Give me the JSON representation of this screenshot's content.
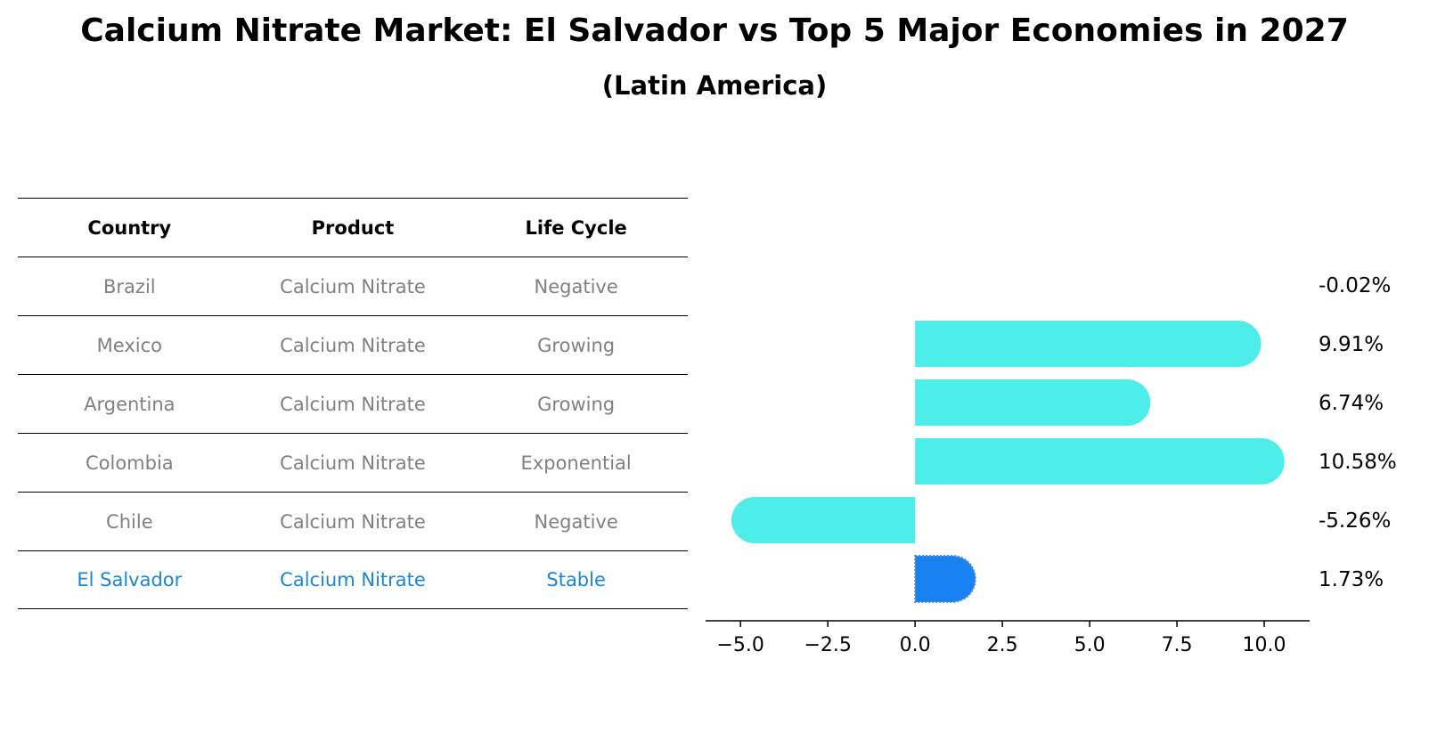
{
  "header": {
    "title": "Calcium Nitrate Market: El Salvador vs Top 5 Major Economies in 2027",
    "subtitle": "(Latin America)"
  },
  "table": {
    "columns": [
      "Country",
      "Product",
      "Life Cycle"
    ],
    "rows": [
      [
        "Brazil",
        "Calcium Nitrate",
        "Negative"
      ],
      [
        "Mexico",
        "Calcium Nitrate",
        "Growing"
      ],
      [
        "Argentina",
        "Calcium Nitrate",
        "Growing"
      ],
      [
        "Colombia",
        "Calcium Nitrate",
        "Exponential"
      ],
      [
        "Chile",
        "Calcium Nitrate",
        "Negative"
      ],
      [
        "El Salvador",
        "Calcium Nitrate",
        "Stable"
      ]
    ]
  },
  "chart_data": {
    "type": "bar",
    "orientation": "horizontal",
    "categories": [
      "Brazil",
      "Mexico",
      "Argentina",
      "Colombia",
      "Chile",
      "El Salvador"
    ],
    "values": [
      -0.02,
      9.91,
      6.74,
      10.58,
      -5.26,
      1.73
    ],
    "value_labels": [
      "-0.02%",
      "9.91%",
      "6.74%",
      "10.58%",
      "-5.26%",
      "1.73%"
    ],
    "highlight": "El Salvador",
    "xlim": [
      -6.0,
      11.3
    ],
    "xticks": [
      -5.0,
      -2.5,
      0.0,
      2.5,
      5.0,
      7.5,
      10.0
    ],
    "xtick_labels": [
      "−5.0",
      "−2.5",
      "0.0",
      "2.5",
      "5.0",
      "7.5",
      "10.0"
    ],
    "colors": {
      "bar": "#4deeea",
      "highlight": "#1a82f0",
      "text_highlight": "#1a86d6"
    }
  }
}
